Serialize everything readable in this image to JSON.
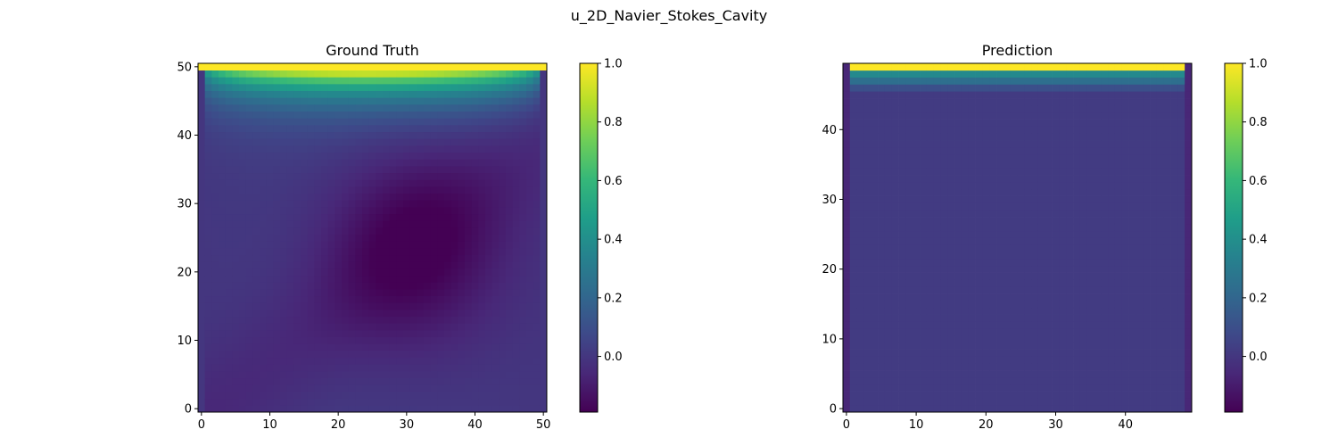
{
  "figure": {
    "title": "u_2D_Navier_Stokes_Cavity"
  },
  "colors": {
    "viridis": [
      "#440154",
      "#482878",
      "#3e4989",
      "#31688e",
      "#26828e",
      "#1f9e89",
      "#35b779",
      "#6ece58",
      "#b5de2b",
      "#fde725"
    ]
  },
  "chart_data": [
    {
      "type": "heatmap",
      "title": "Ground Truth",
      "xlabel": "",
      "ylabel": "",
      "grid_size": [
        51,
        51
      ],
      "xlim": [
        -0.5,
        50.5
      ],
      "ylim": [
        -0.5,
        50.5
      ],
      "xticks": [
        0,
        10,
        20,
        30,
        40,
        50
      ],
      "yticks": [
        0,
        10,
        20,
        30,
        40,
        50
      ],
      "colormap": "viridis",
      "colorbar": {
        "vmin": -0.19,
        "vmax": 1.0,
        "ticks": [
          0.0,
          0.2,
          0.4,
          0.6,
          0.8,
          1.0
        ],
        "tick_labels": [
          "0.0",
          "0.2",
          "0.4",
          "0.6",
          "0.8",
          "1.0"
        ]
      },
      "field_description": "lid-driven cavity: top row = 1.0, side columns = 0, negative vortex minimum about -0.19 near (32, 24)"
    },
    {
      "type": "heatmap",
      "title": "Prediction",
      "xlabel": "",
      "ylabel": "",
      "grid_size": [
        50,
        50
      ],
      "xlim": [
        -0.5,
        49.5
      ],
      "ylim": [
        -0.5,
        49.5
      ],
      "xticks": [
        0,
        10,
        20,
        30,
        40
      ],
      "yticks": [
        0,
        10,
        20,
        30,
        40
      ],
      "colormap": "viridis",
      "colorbar": {
        "vmin": -0.19,
        "vmax": 1.0,
        "ticks": [
          0.0,
          0.2,
          0.4,
          0.6,
          0.8,
          1.0
        ],
        "tick_labels": [
          "0.0",
          "0.2",
          "0.4",
          "0.6",
          "0.8",
          "1.0"
        ]
      },
      "field_description": "nearly uniform value ~0.02, top row = 1.0, next rows ~0.37, ~0.24, ~0.10, edge columns = 0"
    }
  ]
}
